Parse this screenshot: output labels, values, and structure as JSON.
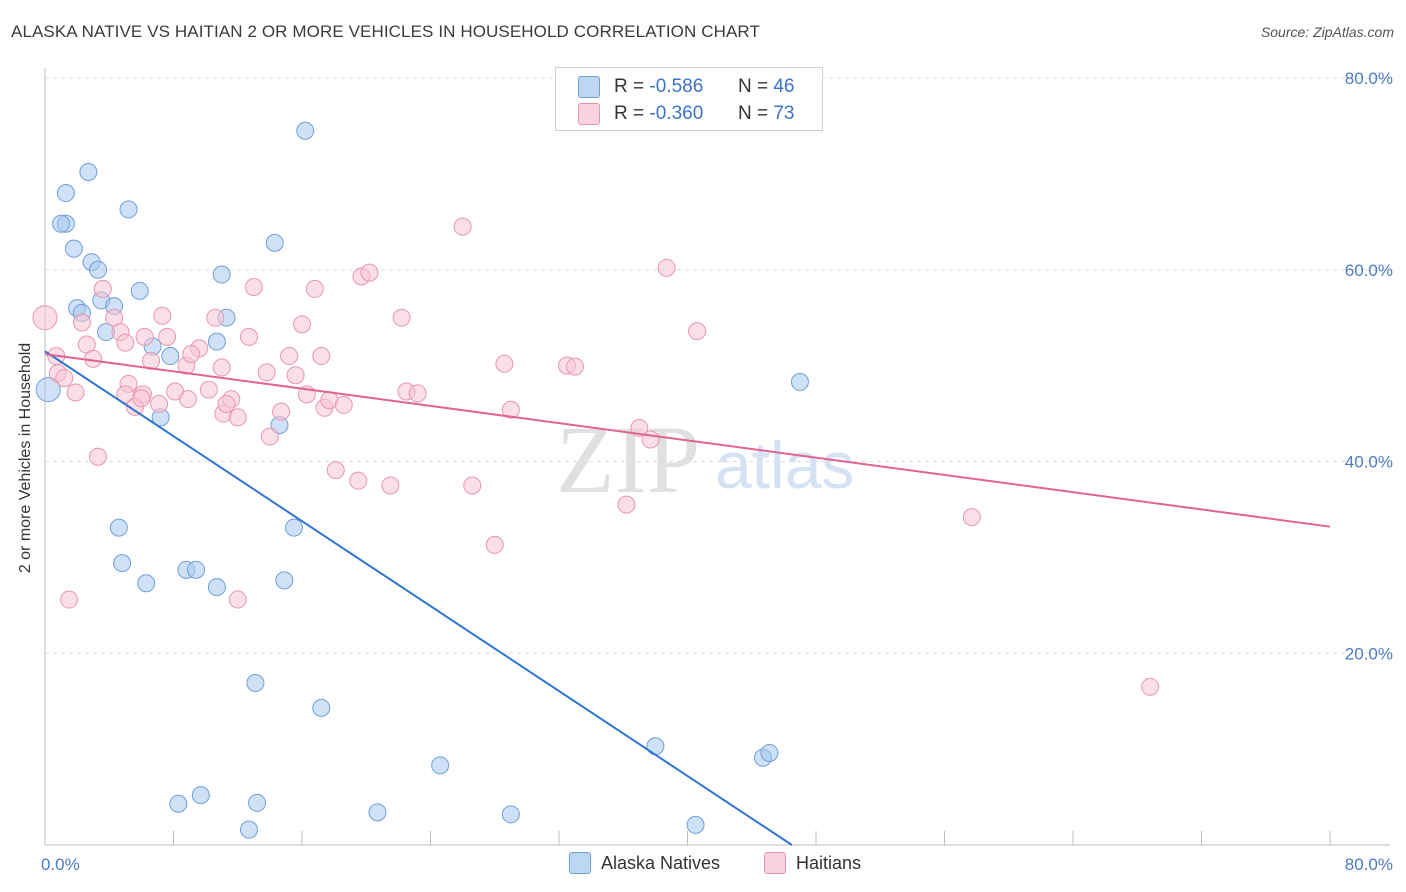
{
  "chart_data": {
    "type": "scatter",
    "title": "ALASKA NATIVE VS HAITIAN 2 OR MORE VEHICLES IN HOUSEHOLD CORRELATION CHART",
    "source": "Source: ZipAtlas.com",
    "xlabel": "",
    "ylabel": "2 or more Vehicles in Household",
    "xlim": [
      0,
      80
    ],
    "ylim": [
      0,
      80
    ],
    "x_tick_labels": {
      "min": "0.0%",
      "max": "80.0%"
    },
    "y_ticks": [
      {
        "value": 20,
        "label": "20.0%"
      },
      {
        "value": 40,
        "label": "40.0%"
      },
      {
        "value": 60,
        "label": "60.0%"
      },
      {
        "value": 80,
        "label": "80.0%"
      }
    ],
    "watermark": {
      "zip": "ZIP",
      "atlas": "atlas"
    },
    "legend": {
      "r_label": "R =",
      "n_label": "N =",
      "rows": [
        {
          "r": "-0.586",
          "n": "46"
        },
        {
          "r": "-0.360",
          "n": "73"
        }
      ]
    },
    "series": [
      {
        "name": "Alaska Natives",
        "color": "#a8c8ef",
        "stroke": "#6f9fd8",
        "line_color": "#2f74cf",
        "trend": {
          "x": [
            0,
            46.5
          ],
          "y": [
            51.5,
            0
          ]
        },
        "points": [
          [
            0.2,
            47.5
          ],
          [
            1.3,
            64.8
          ],
          [
            1.0,
            64.8
          ],
          [
            1.3,
            68.0
          ],
          [
            2.7,
            70.2
          ],
          [
            1.8,
            62.2
          ],
          [
            2.9,
            60.8
          ],
          [
            3.3,
            60.0
          ],
          [
            5.2,
            66.3
          ],
          [
            16.2,
            74.5
          ],
          [
            14.3,
            62.8
          ],
          [
            11.0,
            59.5
          ],
          [
            2.0,
            56.0
          ],
          [
            2.3,
            55.5
          ],
          [
            3.5,
            56.8
          ],
          [
            4.3,
            56.2
          ],
          [
            5.9,
            57.8
          ],
          [
            3.8,
            53.5
          ],
          [
            6.7,
            52.0
          ],
          [
            11.3,
            55.0
          ],
          [
            10.7,
            52.5
          ],
          [
            7.8,
            51.0
          ],
          [
            7.2,
            44.6
          ],
          [
            14.6,
            43.8
          ],
          [
            47.0,
            48.3
          ],
          [
            4.6,
            33.1
          ],
          [
            4.8,
            29.4
          ],
          [
            6.3,
            27.3
          ],
          [
            8.8,
            28.7
          ],
          [
            9.4,
            28.7
          ],
          [
            10.7,
            26.9
          ],
          [
            14.9,
            27.6
          ],
          [
            15.5,
            33.1
          ],
          [
            13.1,
            16.9
          ],
          [
            17.2,
            14.3
          ],
          [
            24.6,
            8.3
          ],
          [
            38.0,
            10.3
          ],
          [
            44.7,
            9.1
          ],
          [
            45.1,
            9.6
          ],
          [
            8.3,
            4.3
          ],
          [
            9.7,
            5.2
          ],
          [
            13.2,
            4.4
          ],
          [
            12.7,
            1.6
          ],
          [
            20.7,
            3.4
          ],
          [
            29.0,
            3.2
          ],
          [
            40.5,
            2.1
          ]
        ]
      },
      {
        "name": "Haitians",
        "color": "#f8c4d4",
        "stroke": "#e896b0",
        "line_color": "#e0648f",
        "trend": {
          "x": [
            0,
            80
          ],
          "y": [
            51.2,
            33.2
          ]
        },
        "points": [
          [
            0.0,
            55.0
          ],
          [
            0.7,
            51.0
          ],
          [
            0.8,
            49.2
          ],
          [
            1.2,
            48.7
          ],
          [
            1.9,
            47.2
          ],
          [
            2.3,
            54.5
          ],
          [
            2.6,
            52.2
          ],
          [
            3.0,
            50.7
          ],
          [
            3.3,
            40.5
          ],
          [
            1.5,
            25.6
          ],
          [
            3.6,
            58.0
          ],
          [
            4.3,
            55.0
          ],
          [
            4.7,
            53.5
          ],
          [
            5.0,
            52.4
          ],
          [
            5.2,
            48.1
          ],
          [
            5.0,
            47.0
          ],
          [
            5.6,
            45.7
          ],
          [
            6.1,
            47.0
          ],
          [
            7.1,
            46.0
          ],
          [
            7.3,
            55.2
          ],
          [
            6.2,
            53.0
          ],
          [
            6.6,
            50.5
          ],
          [
            7.6,
            53.0
          ],
          [
            8.1,
            47.3
          ],
          [
            8.8,
            50.0
          ],
          [
            8.9,
            46.5
          ],
          [
            9.6,
            51.8
          ],
          [
            9.1,
            51.2
          ],
          [
            10.2,
            47.5
          ],
          [
            10.6,
            55.0
          ],
          [
            11.0,
            49.8
          ],
          [
            11.1,
            45.0
          ],
          [
            11.6,
            46.5
          ],
          [
            12.0,
            44.6
          ],
          [
            12.7,
            53.0
          ],
          [
            13.0,
            58.2
          ],
          [
            13.8,
            49.3
          ],
          [
            14.0,
            42.6
          ],
          [
            14.7,
            45.2
          ],
          [
            15.2,
            51.0
          ],
          [
            15.6,
            49.0
          ],
          [
            16.0,
            54.3
          ],
          [
            16.3,
            47.0
          ],
          [
            16.8,
            58.0
          ],
          [
            17.2,
            51.0
          ],
          [
            17.4,
            45.6
          ],
          [
            17.7,
            46.4
          ],
          [
            18.6,
            45.9
          ],
          [
            18.1,
            39.1
          ],
          [
            19.5,
            38.0
          ],
          [
            19.7,
            59.3
          ],
          [
            20.2,
            59.7
          ],
          [
            21.5,
            37.5
          ],
          [
            22.2,
            55.0
          ],
          [
            22.5,
            47.3
          ],
          [
            23.2,
            47.1
          ],
          [
            26.0,
            64.5
          ],
          [
            26.6,
            37.5
          ],
          [
            28.0,
            31.3
          ],
          [
            28.6,
            50.2
          ],
          [
            29.0,
            45.4
          ],
          [
            32.5,
            50.0
          ],
          [
            33.0,
            49.9
          ],
          [
            36.2,
            35.5
          ],
          [
            37.0,
            43.5
          ],
          [
            37.7,
            42.3
          ],
          [
            38.7,
            60.2
          ],
          [
            40.6,
            53.6
          ],
          [
            12.0,
            25.6
          ],
          [
            57.7,
            34.2
          ],
          [
            68.8,
            16.5
          ],
          [
            11.3,
            46.0
          ],
          [
            6.0,
            46.6
          ]
        ]
      }
    ]
  }
}
